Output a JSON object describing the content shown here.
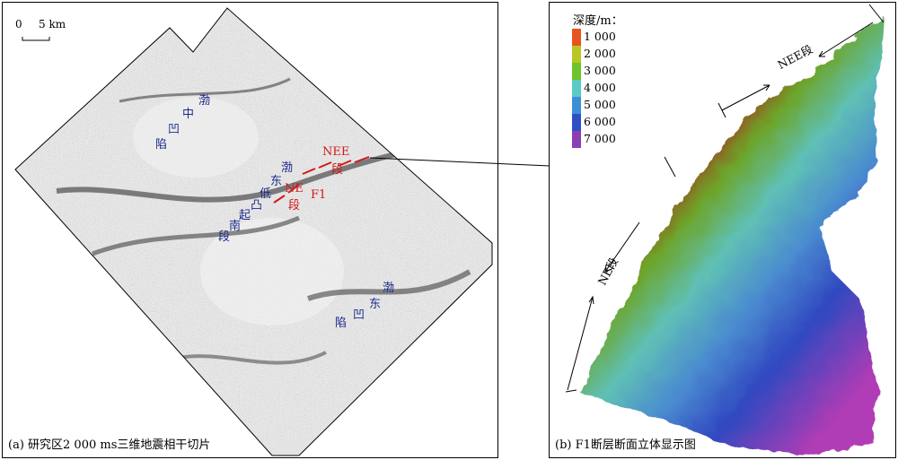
{
  "panel_a": {
    "caption": "(a) 研究区2 000 ms三维地震相干切片",
    "scale_start": "0",
    "scale_end": "5 km",
    "labels": {
      "bozhong_1": "渤",
      "bozhong_2": "中",
      "bozhong_3": "凹",
      "bozhong_4": "陷",
      "bodong_1": "渤",
      "bodong_2": "东",
      "bodong_3": "凹",
      "bodong_4": "陷",
      "ridge_1": "渤",
      "ridge_2": "东",
      "ridge_3": "低",
      "ridge_4": "凸",
      "ridge_5": "起",
      "ridge_6": "南",
      "ridge_7": "段",
      "fault_nee_1": "NEE",
      "fault_nee_2": "段",
      "fault_ne_1": "NE",
      "fault_ne_2": "段",
      "fault_name": "F1"
    }
  },
  "panel_b": {
    "caption": "(b) F1断层断面立体显示图",
    "legend_title": "深度/m：",
    "legend": [
      {
        "label": "1 000",
        "color": "#e8541f"
      },
      {
        "label": "2 000",
        "color": "#b8c722"
      },
      {
        "label": "3 000",
        "color": "#6cc42a"
      },
      {
        "label": "4 000",
        "color": "#5cc9c7"
      },
      {
        "label": "5 000",
        "color": "#3c8fd6"
      },
      {
        "label": "6 000",
        "color": "#2e4fc4"
      },
      {
        "label": "7 000",
        "color": "#8a3fb3"
      }
    ],
    "segment_nee": "NEE段",
    "segment_ne": "NE段"
  }
}
